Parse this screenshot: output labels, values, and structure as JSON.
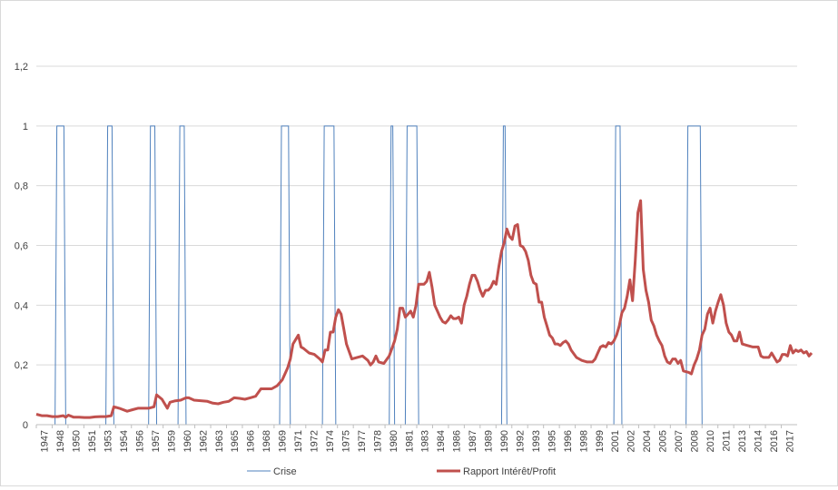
{
  "chart_data": {
    "type": "line",
    "xlabel": "",
    "ylabel": "",
    "x_range": [
      1947,
      2017.75
    ],
    "ylim": [
      0,
      1.2
    ],
    "grid": true,
    "legend_position": "bottom",
    "y_ticks": [
      {
        "value": 0,
        "label": "0"
      },
      {
        "value": 0.2,
        "label": "0,2"
      },
      {
        "value": 0.4,
        "label": "0,4"
      },
      {
        "value": 0.6,
        "label": "0,6"
      },
      {
        "value": 0.8,
        "label": "0,8"
      },
      {
        "value": 1,
        "label": "1"
      },
      {
        "value": 1.2,
        "label": "1,2"
      }
    ],
    "x_tick_labels": [
      "1947",
      "1948",
      "1950",
      "1951",
      "1953",
      "1954",
      "1956",
      "1957",
      "1959",
      "1960",
      "1962",
      "1963",
      "1965",
      "1966",
      "1968",
      "1969",
      "1971",
      "1972",
      "1974",
      "1975",
      "1977",
      "1978",
      "1980",
      "1981",
      "1983",
      "1984",
      "1986",
      "1987",
      "1989",
      "1990",
      "1992",
      "1993",
      "1995",
      "1996",
      "1998",
      "1999",
      "2001",
      "2002",
      "2004",
      "2005",
      "2007",
      "2008",
      "2010",
      "2011",
      "2013",
      "2014",
      "2016",
      "2017"
    ],
    "series": [
      {
        "name": "Crise",
        "color": "#4f81bd",
        "kind": "step",
        "periods": [
          [
            1948.75,
            1949.75
          ],
          [
            1953.5,
            1954.25
          ],
          [
            1957.5,
            1958.25
          ],
          [
            1960.25,
            1961.0
          ],
          [
            1969.75,
            1970.75
          ],
          [
            1973.75,
            1975.0
          ],
          [
            1980.0,
            1980.5
          ],
          [
            1981.5,
            1982.75
          ],
          [
            1990.5,
            1991.0
          ],
          [
            2001.0,
            2001.75
          ],
          [
            2007.75,
            2009.25
          ]
        ]
      },
      {
        "name": "Rapport Intérêt/Profit",
        "color": "#c0504d",
        "kind": "line",
        "points": [
          [
            1947.0,
            0.035
          ],
          [
            1947.5,
            0.03
          ],
          [
            1948.0,
            0.03
          ],
          [
            1948.5,
            0.027
          ],
          [
            1949.0,
            0.027
          ],
          [
            1949.5,
            0.03
          ],
          [
            1949.75,
            0.025
          ],
          [
            1950.0,
            0.032
          ],
          [
            1950.5,
            0.025
          ],
          [
            1951.0,
            0.025
          ],
          [
            1951.5,
            0.024
          ],
          [
            1952.0,
            0.024
          ],
          [
            1952.5,
            0.026
          ],
          [
            1953.0,
            0.027
          ],
          [
            1953.5,
            0.027
          ],
          [
            1954.0,
            0.03
          ],
          [
            1954.25,
            0.06
          ],
          [
            1954.75,
            0.055
          ],
          [
            1955.5,
            0.045
          ],
          [
            1956.0,
            0.05
          ],
          [
            1956.5,
            0.055
          ],
          [
            1957.0,
            0.055
          ],
          [
            1957.5,
            0.055
          ],
          [
            1958.0,
            0.06
          ],
          [
            1958.25,
            0.1
          ],
          [
            1958.75,
            0.085
          ],
          [
            1959.25,
            0.055
          ],
          [
            1959.5,
            0.075
          ],
          [
            1960.0,
            0.08
          ],
          [
            1960.5,
            0.082
          ],
          [
            1961.0,
            0.09
          ],
          [
            1961.25,
            0.09
          ],
          [
            1961.75,
            0.082
          ],
          [
            1962.5,
            0.08
          ],
          [
            1963.0,
            0.078
          ],
          [
            1963.5,
            0.072
          ],
          [
            1964.0,
            0.07
          ],
          [
            1964.5,
            0.075
          ],
          [
            1965.0,
            0.078
          ],
          [
            1965.5,
            0.09
          ],
          [
            1966.0,
            0.088
          ],
          [
            1966.5,
            0.085
          ],
          [
            1967.0,
            0.09
          ],
          [
            1967.5,
            0.095
          ],
          [
            1968.0,
            0.12
          ],
          [
            1968.5,
            0.12
          ],
          [
            1969.0,
            0.12
          ],
          [
            1969.5,
            0.13
          ],
          [
            1970.0,
            0.15
          ],
          [
            1970.5,
            0.19
          ],
          [
            1970.75,
            0.22
          ],
          [
            1971.0,
            0.27
          ],
          [
            1971.5,
            0.3
          ],
          [
            1971.75,
            0.26
          ],
          [
            1972.0,
            0.255
          ],
          [
            1972.5,
            0.24
          ],
          [
            1973.0,
            0.235
          ],
          [
            1973.5,
            0.22
          ],
          [
            1973.75,
            0.21
          ],
          [
            1974.0,
            0.25
          ],
          [
            1974.25,
            0.25
          ],
          [
            1974.5,
            0.31
          ],
          [
            1974.75,
            0.31
          ],
          [
            1975.0,
            0.36
          ],
          [
            1975.25,
            0.385
          ],
          [
            1975.5,
            0.37
          ],
          [
            1975.75,
            0.32
          ],
          [
            1976.0,
            0.27
          ],
          [
            1976.5,
            0.22
          ],
          [
            1977.0,
            0.225
          ],
          [
            1977.5,
            0.23
          ],
          [
            1978.0,
            0.215
          ],
          [
            1978.25,
            0.2
          ],
          [
            1978.5,
            0.21
          ],
          [
            1978.75,
            0.23
          ],
          [
            1979.0,
            0.21
          ],
          [
            1979.5,
            0.205
          ],
          [
            1980.0,
            0.23
          ],
          [
            1980.5,
            0.28
          ],
          [
            1980.75,
            0.32
          ],
          [
            1981.0,
            0.39
          ],
          [
            1981.25,
            0.39
          ],
          [
            1981.5,
            0.36
          ],
          [
            1981.75,
            0.37
          ],
          [
            1982.0,
            0.38
          ],
          [
            1982.25,
            0.36
          ],
          [
            1982.5,
            0.4
          ],
          [
            1982.75,
            0.47
          ],
          [
            1983.0,
            0.47
          ],
          [
            1983.25,
            0.47
          ],
          [
            1983.5,
            0.48
          ],
          [
            1983.75,
            0.51
          ],
          [
            1984.0,
            0.46
          ],
          [
            1984.25,
            0.4
          ],
          [
            1984.5,
            0.38
          ],
          [
            1984.75,
            0.36
          ],
          [
            1985.0,
            0.345
          ],
          [
            1985.25,
            0.34
          ],
          [
            1985.5,
            0.35
          ],
          [
            1985.75,
            0.365
          ],
          [
            1986.0,
            0.355
          ],
          [
            1986.25,
            0.355
          ],
          [
            1986.5,
            0.36
          ],
          [
            1986.75,
            0.34
          ],
          [
            1987.0,
            0.4
          ],
          [
            1987.25,
            0.43
          ],
          [
            1987.5,
            0.47
          ],
          [
            1987.75,
            0.5
          ],
          [
            1988.0,
            0.5
          ],
          [
            1988.25,
            0.48
          ],
          [
            1988.5,
            0.45
          ],
          [
            1988.75,
            0.43
          ],
          [
            1989.0,
            0.45
          ],
          [
            1989.25,
            0.45
          ],
          [
            1989.5,
            0.46
          ],
          [
            1989.75,
            0.48
          ],
          [
            1990.0,
            0.47
          ],
          [
            1990.25,
            0.53
          ],
          [
            1990.5,
            0.58
          ],
          [
            1990.75,
            0.61
          ],
          [
            1991.0,
            0.655
          ],
          [
            1991.25,
            0.63
          ],
          [
            1991.5,
            0.62
          ],
          [
            1991.75,
            0.665
          ],
          [
            1992.0,
            0.67
          ],
          [
            1992.25,
            0.6
          ],
          [
            1992.5,
            0.595
          ],
          [
            1992.75,
            0.58
          ],
          [
            1993.0,
            0.55
          ],
          [
            1993.25,
            0.5
          ],
          [
            1993.5,
            0.475
          ],
          [
            1993.75,
            0.47
          ],
          [
            1994.0,
            0.41
          ],
          [
            1994.25,
            0.41
          ],
          [
            1994.5,
            0.36
          ],
          [
            1994.75,
            0.33
          ],
          [
            1995.0,
            0.3
          ],
          [
            1995.25,
            0.29
          ],
          [
            1995.5,
            0.27
          ],
          [
            1995.75,
            0.27
          ],
          [
            1996.0,
            0.265
          ],
          [
            1996.25,
            0.275
          ],
          [
            1996.5,
            0.28
          ],
          [
            1996.75,
            0.27
          ],
          [
            1997.0,
            0.25
          ],
          [
            1997.5,
            0.225
          ],
          [
            1998.0,
            0.215
          ],
          [
            1998.5,
            0.21
          ],
          [
            1999.0,
            0.21
          ],
          [
            1999.25,
            0.22
          ],
          [
            1999.5,
            0.24
          ],
          [
            1999.75,
            0.26
          ],
          [
            2000.0,
            0.265
          ],
          [
            2000.25,
            0.26
          ],
          [
            2000.5,
            0.275
          ],
          [
            2000.75,
            0.27
          ],
          [
            2001.0,
            0.28
          ],
          [
            2001.25,
            0.3
          ],
          [
            2001.5,
            0.33
          ],
          [
            2001.75,
            0.375
          ],
          [
            2002.0,
            0.39
          ],
          [
            2002.25,
            0.43
          ],
          [
            2002.5,
            0.485
          ],
          [
            2002.75,
            0.415
          ],
          [
            2003.0,
            0.55
          ],
          [
            2003.25,
            0.71
          ],
          [
            2003.5,
            0.75
          ],
          [
            2003.75,
            0.52
          ],
          [
            2004.0,
            0.45
          ],
          [
            2004.25,
            0.41
          ],
          [
            2004.5,
            0.35
          ],
          [
            2004.75,
            0.33
          ],
          [
            2005.0,
            0.3
          ],
          [
            2005.25,
            0.28
          ],
          [
            2005.5,
            0.265
          ],
          [
            2005.75,
            0.23
          ],
          [
            2006.0,
            0.21
          ],
          [
            2006.25,
            0.205
          ],
          [
            2006.5,
            0.22
          ],
          [
            2006.75,
            0.22
          ],
          [
            2007.0,
            0.205
          ],
          [
            2007.25,
            0.215
          ],
          [
            2007.5,
            0.18
          ],
          [
            2008.0,
            0.175
          ],
          [
            2008.25,
            0.17
          ],
          [
            2008.5,
            0.2
          ],
          [
            2008.75,
            0.22
          ],
          [
            2009.0,
            0.25
          ],
          [
            2009.25,
            0.3
          ],
          [
            2009.5,
            0.32
          ],
          [
            2009.75,
            0.37
          ],
          [
            2010.0,
            0.39
          ],
          [
            2010.25,
            0.34
          ],
          [
            2010.5,
            0.38
          ],
          [
            2010.75,
            0.41
          ],
          [
            2011.0,
            0.435
          ],
          [
            2011.25,
            0.4
          ],
          [
            2011.5,
            0.34
          ],
          [
            2011.75,
            0.31
          ],
          [
            2012.0,
            0.3
          ],
          [
            2012.25,
            0.28
          ],
          [
            2012.5,
            0.28
          ],
          [
            2012.75,
            0.31
          ],
          [
            2013.0,
            0.27
          ],
          [
            2013.5,
            0.265
          ],
          [
            2014.0,
            0.26
          ],
          [
            2014.5,
            0.26
          ],
          [
            2014.75,
            0.23
          ],
          [
            2015.0,
            0.225
          ],
          [
            2015.5,
            0.225
          ],
          [
            2015.75,
            0.24
          ],
          [
            2016.0,
            0.225
          ],
          [
            2016.25,
            0.21
          ],
          [
            2016.5,
            0.215
          ],
          [
            2016.75,
            0.235
          ],
          [
            2017.0,
            0.235
          ],
          [
            2017.25,
            0.23
          ],
          [
            2017.5,
            0.265
          ],
          [
            2017.75,
            0.24
          ],
          [
            2018.0,
            0.25
          ],
          [
            2018.25,
            0.245
          ],
          [
            2018.5,
            0.25
          ],
          [
            2018.75,
            0.24
          ],
          [
            2019.0,
            0.245
          ],
          [
            2019.25,
            0.23
          ],
          [
            2019.5,
            0.24
          ]
        ]
      }
    ]
  }
}
